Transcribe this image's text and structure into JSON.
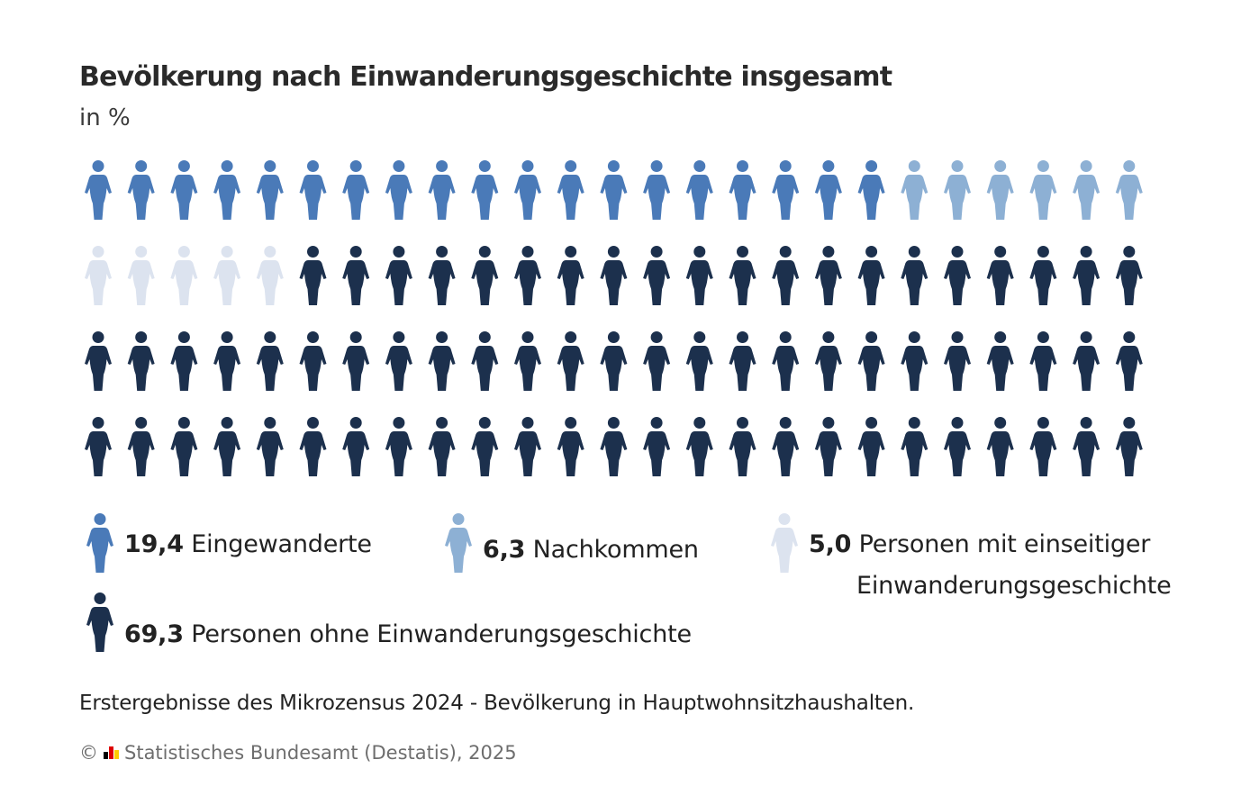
{
  "title": "Bevölkerung nach Einwanderungsgeschichte insgesamt",
  "subtitle": "in %",
  "chart_data": {
    "type": "pictogram",
    "title": "Bevölkerung nach Einwanderungsgeschichte insgesamt",
    "unit": "in %",
    "total_icons": 100,
    "icons_per_row": 25,
    "rows": 4,
    "series": [
      {
        "name": "Eingewanderte",
        "value": 19.4,
        "value_label": "19,4",
        "icons": 19,
        "color": "#4a7ab8"
      },
      {
        "name": "Nachkommen",
        "value": 6.3,
        "value_label": "6,3",
        "icons": 6,
        "color": "#8db0d4"
      },
      {
        "name": "Personen mit einseitiger Einwanderungsgeschichte",
        "value": 5.0,
        "value_label": "5,0",
        "icons": 5,
        "color": "#dce3ef"
      },
      {
        "name": "Personen ohne Einwanderungsgeschichte",
        "value": 69.3,
        "value_label": "69,3",
        "icons": 70,
        "color": "#1c304d"
      }
    ]
  },
  "legend": {
    "items": [
      {
        "value": "19,4",
        "line1": "Eingewanderte",
        "line2": ""
      },
      {
        "value": "6,3",
        "line1": "Nachkommen",
        "line2": ""
      },
      {
        "value": "5,0",
        "line1": "Personen mit einseitiger",
        "line2": "Einwanderungsgeschichte"
      },
      {
        "value": "69,3",
        "line1": "Personen ohne Einwanderungsgeschichte",
        "line2": ""
      }
    ]
  },
  "note": "Erstergebnisse des Mikrozensus 2024 - Bevölkerung in Hauptwohnsitzhaushalten.",
  "source": {
    "copyright": "©",
    "text": "Statistisches Bundesamt (Destatis), 2025",
    "logo_icon": "destatis-logo-icon",
    "logo_colors": [
      "#000000",
      "#dd0000",
      "#ffcc00"
    ]
  }
}
